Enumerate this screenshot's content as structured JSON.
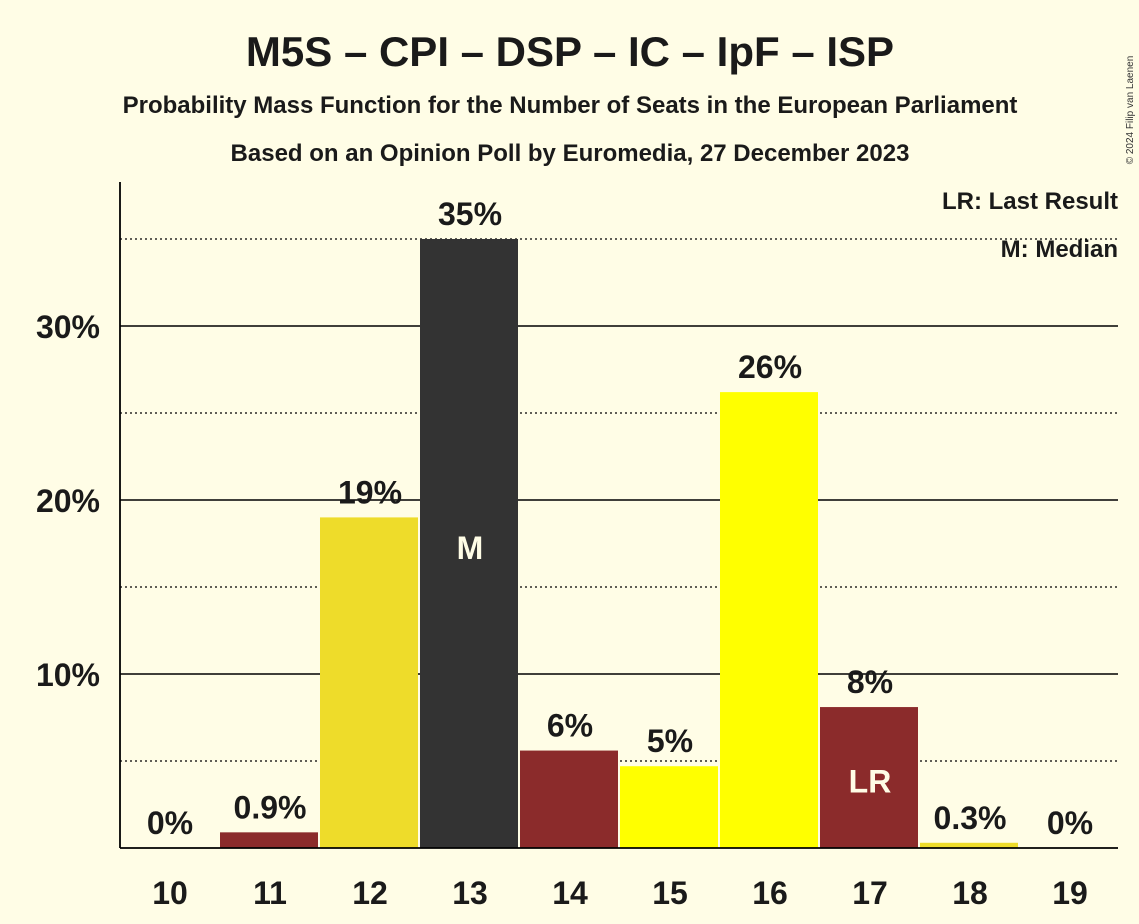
{
  "copyright": "© 2024 Filip van Laenen",
  "chart_data": {
    "type": "bar",
    "title": "M5S – CPI – DSP – IC – IpF – ISP",
    "subtitle": "Probability Mass Function for the Number of Seats in the European Parliament",
    "subtitle2": "Based on an Opinion Poll by Euromedia, 27 December 2023",
    "xlabel": "",
    "ylabel": "",
    "ylim": [
      0,
      38
    ],
    "yticks": [
      10,
      20,
      30
    ],
    "ytick_labels": [
      "10%",
      "20%",
      "30%"
    ],
    "minor_gridlines": [
      5,
      15,
      25,
      35
    ],
    "categories": [
      "10",
      "11",
      "12",
      "13",
      "14",
      "15",
      "16",
      "17",
      "18",
      "19"
    ],
    "values": [
      0,
      0.9,
      19,
      35,
      5.6,
      4.7,
      26.2,
      8.1,
      0.3,
      0
    ],
    "labels": [
      "0%",
      "0.9%",
      "19%",
      "35%",
      "6%",
      "5%",
      "26%",
      "8%",
      "0.3%",
      "0%"
    ],
    "colors": [
      "#8B2B2B",
      "#8B2B2B",
      "#EEDC2A",
      "#333333",
      "#8B2B2B",
      "#FFFF00",
      "#FFFF00",
      "#8B2B2B",
      "#EEDC2A",
      "#8B2B2B"
    ],
    "markers": [
      {
        "category": "13",
        "text": "M"
      },
      {
        "category": "17",
        "text": "LR"
      }
    ],
    "legend": [
      "LR: Last Result",
      "M: Median"
    ],
    "legend_position": "top-right"
  }
}
